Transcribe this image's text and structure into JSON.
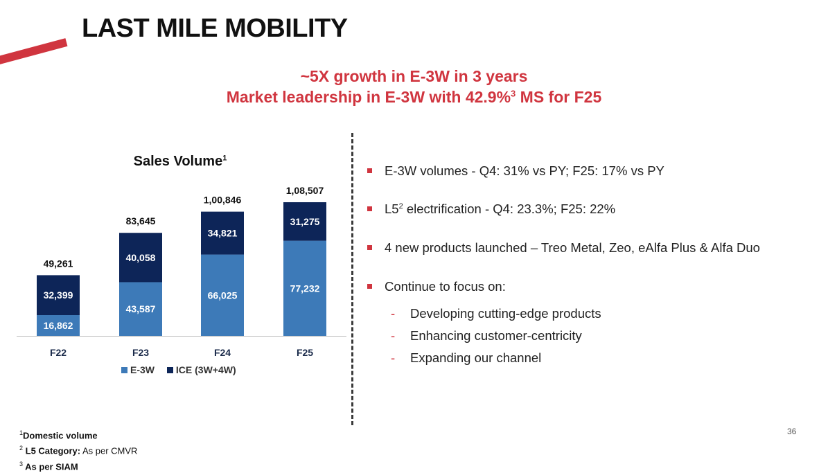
{
  "title": "LAST MILE MOBILITY",
  "headline": {
    "line1": "~5X growth in E-3W in 3 years",
    "line2_pre": "Market leadership in E-3W with 42.9%",
    "line2_sup": "3",
    "line2_post": " MS for F25"
  },
  "colors": {
    "accent": "#d0353f",
    "e3w": "#3d7ab8",
    "ice": "#0d2558"
  },
  "chart_data": {
    "type": "bar",
    "stacked": true,
    "title": "Sales Volume",
    "title_sup": "1",
    "categories": [
      "F22",
      "F23",
      "F24",
      "F25"
    ],
    "series": [
      {
        "name": "E-3W",
        "values": [
          16862,
          43587,
          66025,
          77232
        ],
        "labels": [
          "16,862",
          "43,587",
          "66,025",
          "77,232"
        ]
      },
      {
        "name": "ICE (3W+4W)",
        "values": [
          32399,
          40058,
          34821,
          31275
        ],
        "labels": [
          "32,399",
          "40,058",
          "34,821",
          "31,275"
        ]
      }
    ],
    "totals": [
      49261,
      83645,
      100846,
      108507
    ],
    "total_labels": [
      "49,261",
      "83,645",
      "1,00,846",
      "1,08,507"
    ],
    "legend_position": "bottom",
    "grid": false
  },
  "bullets": [
    {
      "text": "E-3W volumes - Q4: 31% vs PY; F25: 17% vs PY"
    },
    {
      "pre": "L5",
      "sup": "2",
      "post": " electrification - Q4: 23.3%; F25: 22%"
    },
    {
      "text": "4 new products launched – Treo Metal, Zeo, eAlfa Plus & Alfa Duo"
    },
    {
      "text": "Continue to focus on:"
    }
  ],
  "subitems": [
    {
      "dash": "-",
      "text": "Developing cutting-edge products"
    },
    {
      "dash": "-",
      "text": "Enhancing customer-centricity"
    },
    {
      "dash": "-",
      "text": "Expanding our channel"
    }
  ],
  "footnotes": {
    "f1_sup": "1",
    "f1_bold": "Domestic volume",
    "f2_sup": "2",
    "f2_bold": " L5 Category:",
    "f2_text": " As per CMVR",
    "f3_sup": "3",
    "f3_bold": " As per SIAM"
  },
  "page_number": "36"
}
